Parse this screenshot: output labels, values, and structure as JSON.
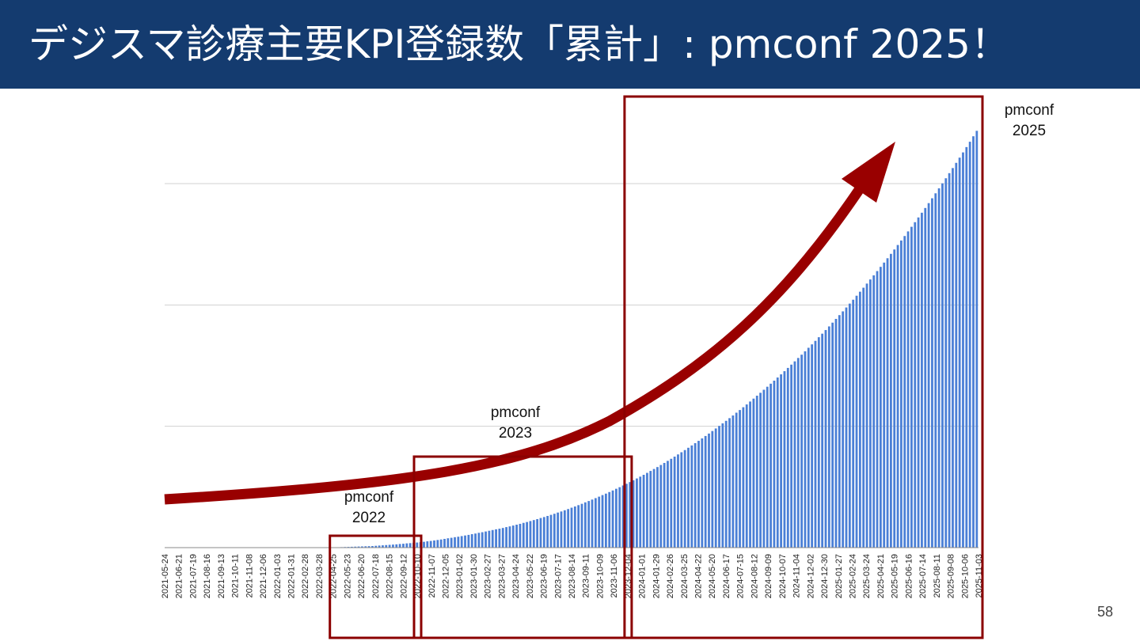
{
  "slide": {
    "title": "デジスマ診療主要KPI登録数「累計」: pmconf 2025！",
    "page_number": "58"
  },
  "annotations": [
    {
      "name": "pmconf-2022",
      "lines": [
        "pmconf",
        "2022"
      ],
      "start": "2022-04-25",
      "end": "2022-10-10"
    },
    {
      "name": "pmconf-2023",
      "lines": [
        "pmconf",
        "2023"
      ],
      "start": "2022-10-10",
      "end": "2023-12-04"
    },
    {
      "name": "pmconf-2025",
      "lines": [
        "pmconf",
        "2025"
      ],
      "start": "2023-12-04",
      "end": "2025-11-03"
    }
  ],
  "colors": {
    "bar": "#4a7fd6",
    "box": "#8b0000",
    "arrow": "#990000",
    "header": "#143b6f",
    "grid": "#d0d0d0"
  },
  "chart_data": {
    "type": "bar",
    "title": "",
    "xlabel": "",
    "ylabel": "",
    "frequency": "weekly",
    "x_start": "2021-05-24",
    "x_end": "2025-11-03",
    "ylim": [
      0,
      360
    ],
    "yticks": [
      0,
      100,
      200,
      300
    ],
    "ytick_labels_visible": false,
    "grid": true,
    "tick_labels": [
      "2021-05-24",
      "2021-06-21",
      "2021-07-19",
      "2021-08-16",
      "2021-09-13",
      "2021-10-11",
      "2021-11-08",
      "2021-12-06",
      "2022-01-03",
      "2022-01-31",
      "2022-02-28",
      "2022-03-28",
      "2022-04-25",
      "2022-05-23",
      "2022-06-20",
      "2022-07-18",
      "2022-08-15",
      "2022-09-12",
      "2022-10-10",
      "2022-11-07",
      "2022-12-05",
      "2023-01-02",
      "2023-01-30",
      "2023-02-27",
      "2023-03-27",
      "2023-04-24",
      "2023-05-22",
      "2023-06-19",
      "2023-07-17",
      "2023-08-14",
      "2023-09-11",
      "2023-10-09",
      "2023-11-06",
      "2023-12-04",
      "2024-01-01",
      "2024-01-29",
      "2024-02-26",
      "2024-03-25",
      "2024-04-22",
      "2024-05-20",
      "2024-06-17",
      "2024-07-15",
      "2024-08-12",
      "2024-09-09",
      "2024-10-07",
      "2024-11-04",
      "2024-12-02",
      "2024-12-30",
      "2025-01-27",
      "2025-02-24",
      "2025-03-24",
      "2025-04-21",
      "2025-05-19",
      "2025-06-16",
      "2025-07-14",
      "2025-08-11",
      "2025-09-08",
      "2025-10-06",
      "2025-11-03"
    ],
    "series": [
      {
        "values": [
          0,
          0,
          0,
          0,
          0,
          0,
          0,
          0,
          0,
          0,
          0,
          0,
          0,
          0,
          0,
          0,
          0,
          0,
          0,
          0,
          0,
          0,
          0,
          0,
          0,
          0,
          0,
          0,
          0,
          0,
          0,
          0,
          0,
          0,
          0,
          0,
          0,
          0,
          0,
          0,
          0,
          0,
          0,
          0,
          0,
          0,
          0,
          0,
          0.1,
          0.2,
          0.3,
          0.4,
          0.5,
          0.6,
          0.7,
          0.8,
          0.9,
          1.0,
          1.1,
          1.2,
          1.3,
          1.5,
          1.7,
          1.9,
          2.1,
          2.3,
          2.5,
          2.7,
          3.0,
          3.2,
          3.5,
          3.7,
          4.0,
          4.2,
          4.5,
          4.8,
          5.2,
          5.5,
          5.9,
          6.3,
          6.7,
          7.2,
          7.7,
          8.1,
          8.6,
          9.0,
          9.5,
          10.0,
          10.5,
          11.1,
          11.6,
          12.2,
          12.7,
          13.3,
          13.9,
          14.5,
          15.1,
          15.6,
          16.2,
          16.9,
          17.5,
          18.2,
          18.9,
          19.6,
          20.4,
          21.1,
          21.9,
          22.7,
          23.5,
          24.4,
          25.2,
          26.1,
          27.0,
          27.9,
          28.9,
          29.8,
          30.8,
          31.8,
          32.9,
          33.9,
          35.0,
          36.1,
          37.3,
          38.4,
          39.6,
          40.8,
          42.0,
          43.3,
          44.5,
          45.8,
          47.1,
          48.5,
          49.8,
          51.2,
          52.6,
          54.0,
          55.5,
          57.0,
          58.5,
          60.0,
          61.6,
          63.2,
          64.8,
          66.4,
          68.1,
          69.8,
          71.5,
          73.2,
          75.0,
          76.8,
          78.6,
          80.4,
          82.3,
          84.2,
          86.1,
          88.0,
          90.0,
          92.0,
          94.0,
          96.1,
          98.2,
          100.3,
          102.4,
          104.5,
          106.7,
          108.9,
          111.2,
          113.4,
          115.7,
          118.0,
          120.4,
          122.8,
          125.2,
          127.6,
          130.1,
          132.6,
          135.1,
          137.6,
          140.2,
          142.8,
          145.4,
          148.1,
          150.8,
          153.5,
          156.3,
          159.0,
          161.8,
          164.7,
          167.5,
          170.4,
          173.4,
          176.3,
          179.3,
          182.3,
          185.4,
          188.5,
          191.6,
          194.7,
          197.9,
          201.1,
          204.3,
          207.6,
          210.9,
          214.2,
          217.6,
          221.0,
          224.4,
          227.9,
          231.4,
          234.9,
          238.5,
          242.1,
          245.7,
          249.4,
          253.1,
          256.8,
          260.6,
          264.4,
          268.2,
          272.1,
          276.0,
          279.9,
          283.9,
          287.9,
          292.0,
          296.1,
          300.2,
          304.4,
          308.6,
          312.8,
          317.1,
          321.4,
          325.7,
          330.1,
          334.5,
          339.0,
          343.5
        ]
      }
    ]
  }
}
